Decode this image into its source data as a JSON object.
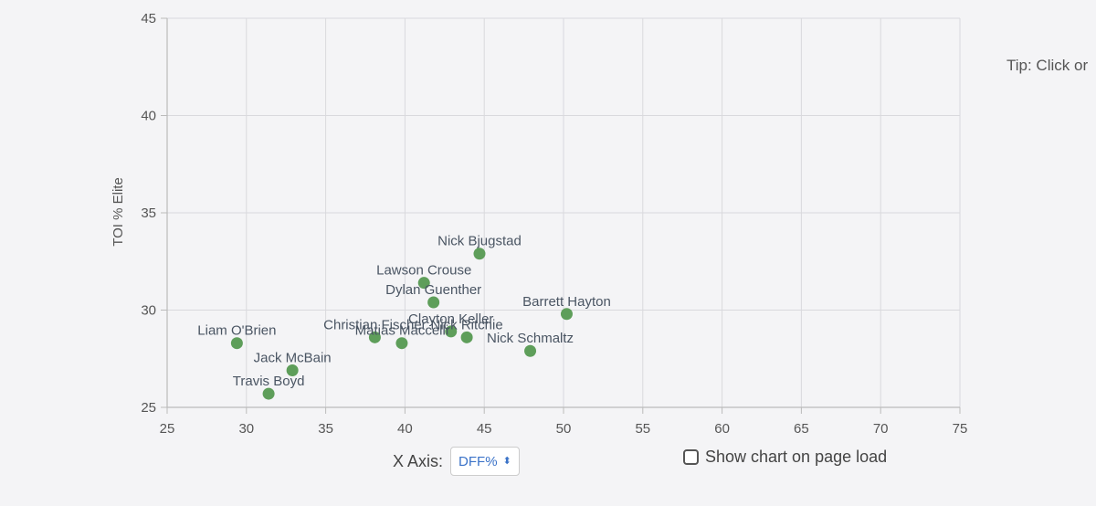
{
  "tip_text": "Tip: Click or",
  "controls": {
    "x_axis_label": "X Axis:",
    "x_axis_value": "DFF%",
    "show_chart_label": "Show chart on page load",
    "show_chart_checked": false
  },
  "chart_data": {
    "type": "scatter",
    "title": "",
    "xlabel": "",
    "ylabel": "TOI % Elite",
    "xlim": [
      25,
      75
    ],
    "ylim": [
      25,
      45
    ],
    "xticks": [
      25,
      30,
      35,
      40,
      45,
      50,
      55,
      60,
      65,
      70,
      75
    ],
    "yticks": [
      25,
      30,
      35,
      40,
      45
    ],
    "grid": true,
    "point_color": "#5e9e5a",
    "points": [
      {
        "label": "Nick Bjugstad",
        "x": 44.7,
        "y": 32.9
      },
      {
        "label": "Lawson Crouse",
        "x": 41.2,
        "y": 31.4
      },
      {
        "label": "Dylan Guenther",
        "x": 41.8,
        "y": 30.4
      },
      {
        "label": "Barrett Hayton",
        "x": 50.2,
        "y": 29.8
      },
      {
        "label": "Clayton Keller",
        "x": 42.9,
        "y": 28.9
      },
      {
        "label": "Christian Fischer",
        "x": 38.1,
        "y": 28.6
      },
      {
        "label": "Nick Ritchie",
        "x": 43.9,
        "y": 28.6
      },
      {
        "label": "Matias Maccelli",
        "x": 39.8,
        "y": 28.3
      },
      {
        "label": "Liam O'Brien",
        "x": 29.4,
        "y": 28.3
      },
      {
        "label": "Nick Schmaltz",
        "x": 47.9,
        "y": 27.9
      },
      {
        "label": "Jack McBain",
        "x": 32.9,
        "y": 26.9
      },
      {
        "label": "Travis Boyd",
        "x": 31.4,
        "y": 25.7
      }
    ]
  }
}
